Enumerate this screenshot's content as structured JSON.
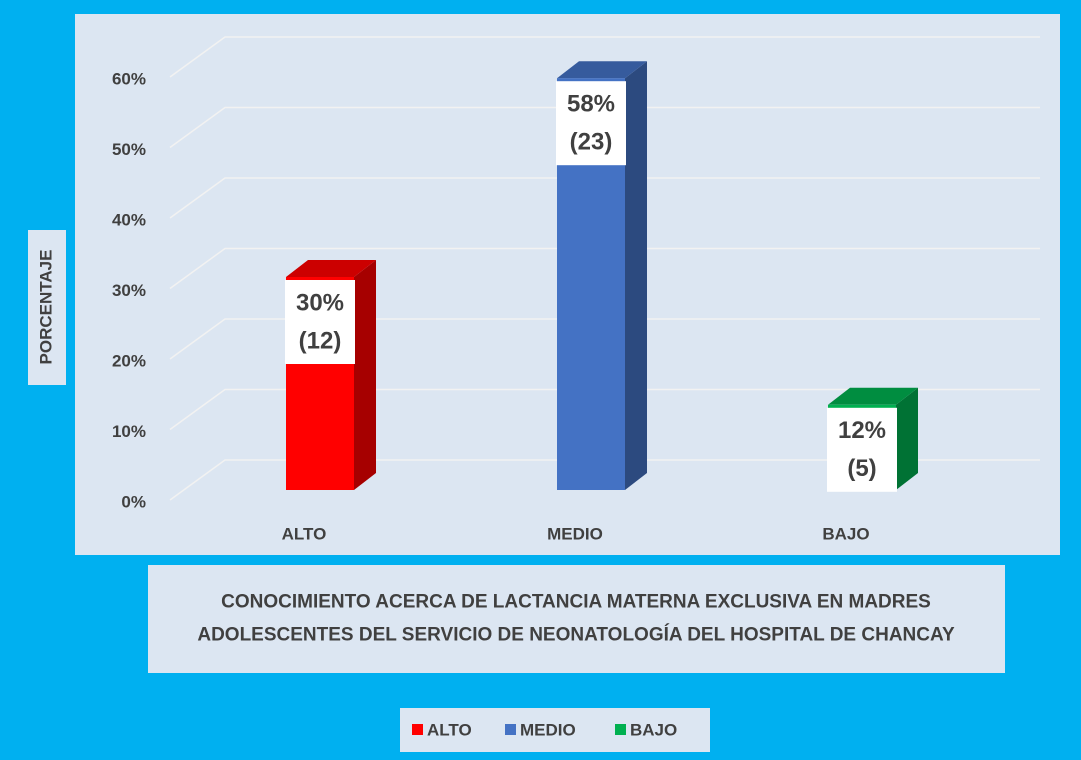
{
  "chart_data": {
    "type": "bar3d",
    "x_label": "CONOCIMIENTO ACERCA DE LACTANCIA MATERNA EXCLUSIVA  EN MADRES ADOLESCENTES DEL SERVICIO DE NEONATOLOGÍA DEL HOSPITAL DE CHANCAY",
    "y_label": "PORCENTAJE",
    "categories": [
      "ALTO",
      "MEDIO",
      "BAJO"
    ],
    "values": [
      30,
      58,
      12
    ],
    "value_labels": [
      "30%",
      "58%",
      "12%"
    ],
    "counts": [
      12,
      23,
      5
    ],
    "count_labels": [
      "(12)",
      "(23)",
      "(5)"
    ],
    "colors": [
      "#ff0000",
      "#4472c4",
      "#00b050"
    ],
    "ylim": [
      0,
      60
    ],
    "yticks": [
      {
        "value": 0,
        "label": "0%"
      },
      {
        "value": 10,
        "label": "10%"
      },
      {
        "value": 20,
        "label": "20%"
      },
      {
        "value": 30,
        "label": "30%"
      },
      {
        "value": 40,
        "label": "40%"
      },
      {
        "value": 50,
        "label": "50%"
      },
      {
        "value": 60,
        "label": "60%"
      }
    ],
    "grid": true,
    "legend": "bottom"
  }
}
